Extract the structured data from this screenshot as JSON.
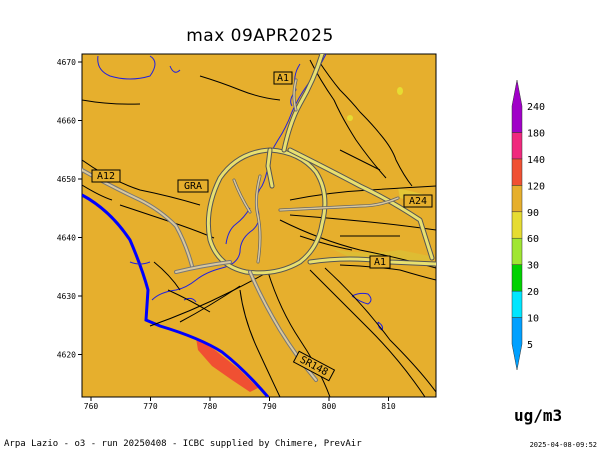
{
  "title": "max 09APR2025",
  "unit": "ug/m3",
  "footer": "Arpa Lazio - o3 - run 20250408 - ICBC supplied by Chimere, PrevAir",
  "timestamp": "2025-04-08-09:52",
  "axes": {
    "x_ticks": [
      "760",
      "770",
      "780",
      "790",
      "800",
      "810"
    ],
    "y_ticks": [
      "4670",
      "4660",
      "4650",
      "4640",
      "4630",
      "4620"
    ]
  },
  "road_labels": [
    "A1",
    "A12",
    "GRA",
    "A24",
    "A1",
    "SR148"
  ],
  "legend": {
    "levels": [
      "5",
      "10",
      "20",
      "30",
      "60",
      "90",
      "120",
      "140",
      "180",
      "240"
    ],
    "colors": [
      "#00a0ff",
      "#00e6ff",
      "#00d200",
      "#a0e632",
      "#e6dc32",
      "#e6af2d",
      "#f05032",
      "#f0287d",
      "#a000c8"
    ],
    "background_color": "#e6af2d",
    "hotspot_color": "#f05032"
  }
}
